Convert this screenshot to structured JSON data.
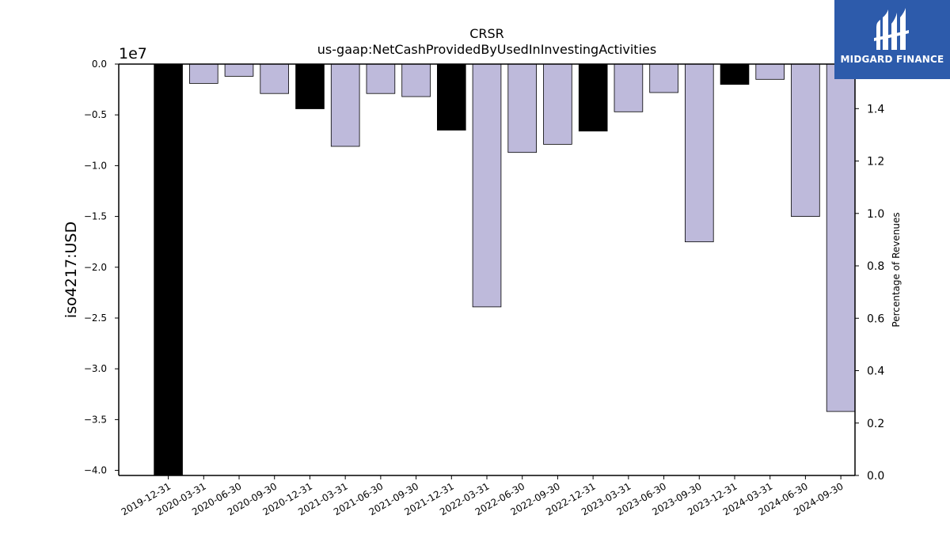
{
  "chart_data": {
    "type": "bar",
    "title": "CRSR",
    "subtitle": "us-gaap:NetCashProvidedByUsedInInvestingActivities",
    "ylabel": "iso4217:USD",
    "y_multiplier_label": "1e7",
    "y2label": "Percentage of Revenues",
    "ylim": [
      -40500000,
      0
    ],
    "y2lim": [
      0.0,
      1.57
    ],
    "yticks": [
      "0.0",
      "−0.5",
      "−1.0",
      "−1.5",
      "−2.0",
      "−2.5",
      "−3.0",
      "−3.5",
      "−4.0"
    ],
    "y2ticks": [
      "0.0",
      "0.2",
      "0.4",
      "0.6",
      "0.8",
      "1.0",
      "1.2",
      "1.4"
    ],
    "categories": [
      "2019-12-31",
      "2020-03-31",
      "2020-06-30",
      "2020-09-30",
      "2020-12-31",
      "2021-03-31",
      "2021-06-30",
      "2021-09-30",
      "2021-12-31",
      "2022-03-31",
      "2022-06-30",
      "2022-09-30",
      "2022-12-31",
      "2023-03-31",
      "2023-06-30",
      "2023-09-30",
      "2023-12-31",
      "2024-03-31",
      "2024-06-30",
      "2024-09-30"
    ],
    "values": [
      -40500000,
      -1900000,
      -1200000,
      -2900000,
      -4400000,
      -8100000,
      -2900000,
      -3200000,
      -6500000,
      -23900000,
      -8700000,
      -7900000,
      -6600000,
      -4700000,
      -2800000,
      -17500000,
      -2000000,
      -1500000,
      -15000000,
      -34200000
    ],
    "annual": [
      true,
      false,
      false,
      false,
      true,
      false,
      false,
      false,
      true,
      false,
      false,
      false,
      true,
      false,
      false,
      false,
      true,
      false,
      false,
      false
    ],
    "colors": {
      "annual": "#000000",
      "quarterly": "#bebadb",
      "edge": "#000000"
    },
    "grid": false
  },
  "logo": {
    "text": "MIDGARD FINANCE",
    "color": "#2d5bab"
  }
}
